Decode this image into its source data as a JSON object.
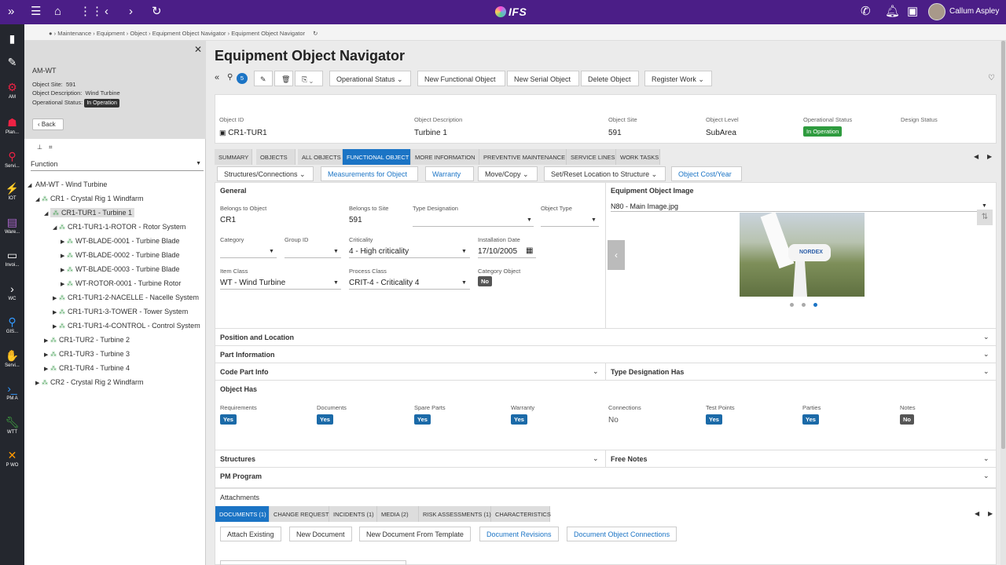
{
  "topbar": {
    "logo": "IFS",
    "user": "Callum Aspley"
  },
  "leftnav": [
    {
      "icon": "am-icon",
      "label": "AM"
    },
    {
      "icon": "planning-icon",
      "label": "Plan..."
    },
    {
      "icon": "service-icon",
      "label": "Servi..."
    },
    {
      "icon": "iot-icon",
      "label": "IOT"
    },
    {
      "icon": "warehouse-icon",
      "label": "Ware..."
    },
    {
      "icon": "invoice-icon",
      "label": "Invoi..."
    },
    {
      "icon": "wc-icon",
      "label": "WC"
    },
    {
      "icon": "gis-icon",
      "label": "GIS..."
    },
    {
      "icon": "service2-icon",
      "label": "Servi..."
    },
    {
      "icon": "pma-icon",
      "label": "PM A"
    },
    {
      "icon": "wtt-icon",
      "label": "WTT"
    },
    {
      "icon": "pwo-icon",
      "label": "P WO"
    }
  ],
  "breadcrumb": [
    "Maintenance",
    "Equipment",
    "Object",
    "Equipment Object Navigator",
    "Equipment Object Navigator"
  ],
  "panel": {
    "title": "AM-WT",
    "site_label": "Object Site:",
    "site": "591",
    "desc_label": "Object Description:",
    "desc": "Wind Turbine",
    "status_label": "Operational Status:",
    "status": "In Operation",
    "back": "Back",
    "filter": "Function"
  },
  "tree": [
    "AM-WT - Wind Turbine",
    "CR1 - Crystal Rig 1 Windfarm",
    "CR1-TUR1 - Turbine 1",
    "CR1-TUR1-1-ROTOR - Rotor System",
    "WT-BLADE-0001 - Turbine Blade",
    "WT-BLADE-0002 - Turbine Blade",
    "WT-BLADE-0003 - Turbine Blade",
    "WT-ROTOR-0001 - Turbine Rotor",
    "CR1-TUR1-2-NACELLE - Nacelle System",
    "CR1-TUR1-3-TOWER - Tower System",
    "CR1-TUR1-4-CONTROL - Control System",
    "CR1-TUR2 - Turbine 2",
    "CR1-TUR3 - Turbine 3",
    "CR1-TUR4 - Turbine 4",
    "CR2 - Crystal Rig 2 Windfarm"
  ],
  "page_title": "Equipment Object Navigator",
  "toolbar": {
    "attach_count": "5",
    "op_status": "Operational Status",
    "new_functional": "New Functional Object",
    "new_serial": "New Serial Object",
    "delete": "Delete Object",
    "register_work": "Register Work"
  },
  "header": {
    "object_id_label": "Object ID",
    "object_id": "CR1-TUR1",
    "desc_label": "Object Description",
    "desc": "Turbine 1",
    "site_label": "Object Site",
    "site": "591",
    "level_label": "Object Level",
    "level": "SubArea",
    "op_label": "Operational Status",
    "op": "In Operation",
    "design_label": "Design Status"
  },
  "tabs": [
    "SUMMARY",
    "OBJECTS",
    "ALL OBJECTS",
    "FUNCTIONAL OBJECT",
    "MORE INFORMATION",
    "PREVENTIVE MAINTENANCE",
    "SERVICE LINES",
    "WORK TASKS"
  ],
  "subtabs": [
    "Structures/Connections",
    "Measurements for Object",
    "Warranty",
    "Move/Copy",
    "Set/Reset Location to Structure",
    "Object Cost/Year"
  ],
  "general": {
    "title": "General",
    "belongs_obj_l": "Belongs to Object",
    "belongs_obj": "CR1",
    "belongs_site_l": "Belongs to Site",
    "belongs_site": "591",
    "type_des_l": "Type Designation",
    "obj_type_l": "Object Type",
    "category_l": "Category",
    "group_l": "Group ID",
    "crit_l": "Criticality",
    "crit": "4 - High criticality",
    "inst_l": "Installation Date",
    "inst": "17/10/2005",
    "item_l": "Item Class",
    "item": "WT - Wind Turbine",
    "proc_l": "Process Class",
    "proc": "CRIT-4 - Criticality 4",
    "catobj_l": "Category Object",
    "catobj": "No"
  },
  "image": {
    "title": "Equipment Object Image",
    "file": "N80 - Main Image.jpg",
    "brand": "NORDEX"
  },
  "sections": {
    "position": "Position and Location",
    "part": "Part Information",
    "code": "Code Part Info",
    "typedes": "Type Designation Has",
    "objhas": "Object Has",
    "structures": "Structures",
    "freenotes": "Free Notes",
    "pm": "PM Program"
  },
  "objhas": [
    {
      "l": "Requirements",
      "v": "Yes"
    },
    {
      "l": "Documents",
      "v": "Yes"
    },
    {
      "l": "Spare Parts",
      "v": "Yes"
    },
    {
      "l": "Warranty",
      "v": "Yes"
    },
    {
      "l": "Connections",
      "v": "No"
    },
    {
      "l": "Test Points",
      "v": "Yes"
    },
    {
      "l": "Parties",
      "v": "Yes"
    },
    {
      "l": "Notes",
      "v": "No"
    }
  ],
  "attachments": {
    "title": "Attachments",
    "tabs": [
      "DOCUMENTS (1)",
      "CHANGE REQUEST",
      "INCIDENTS (1)",
      "MEDIA (2)",
      "RISK ASSESSMENTS (1)",
      "CHARACTERISTICS"
    ],
    "buttons": [
      "Attach Existing",
      "New Document",
      "New Document From Template",
      "Document Revisions",
      "Document Object Connections"
    ]
  }
}
